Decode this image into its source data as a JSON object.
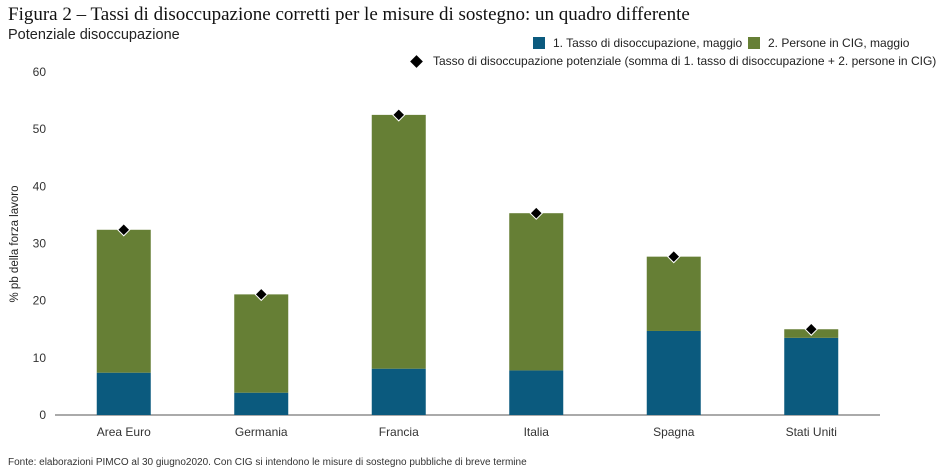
{
  "title": "Figura 2 – Tassi di disoccupazione corretti per le misure di sostegno: un quadro differente",
  "subtitle": "Potenziale disoccupazione",
  "source": "Fonte: elaborazioni PIMCO al 30 giugno2020. Con CIG si intendono le misure di sostegno pubbliche di breve termine",
  "chart_data": {
    "type": "bar",
    "stacked": true,
    "categories": [
      "Area Euro",
      "Germania",
      "Francia",
      "Italia",
      "Spagna",
      "Stati Uniti"
    ],
    "series": [
      {
        "name": "1. Tasso di disoccupazione, maggio",
        "values": [
          7.4,
          3.9,
          8.1,
          7.8,
          14.7,
          13.5
        ],
        "color": "#0b5a7e"
      },
      {
        "name": "2. Persone in CIG, maggio",
        "values": [
          25.0,
          17.2,
          44.4,
          27.5,
          13.0,
          1.5
        ],
        "color": "#667f35"
      }
    ],
    "markers": {
      "name": "Tasso di disoccupazione potenziale (somma di 1. tasso di disoccupazione + 2. persone in CIG)",
      "values": [
        32.4,
        21.1,
        52.5,
        35.3,
        27.7,
        15.0
      ],
      "color": "#000000"
    },
    "ylabel": "% pb della forza lavoro",
    "ylim": [
      0,
      60
    ],
    "yticks": [
      0,
      10,
      20,
      30,
      40,
      50,
      60
    ],
    "grid": false,
    "legend_position": "top-right"
  }
}
